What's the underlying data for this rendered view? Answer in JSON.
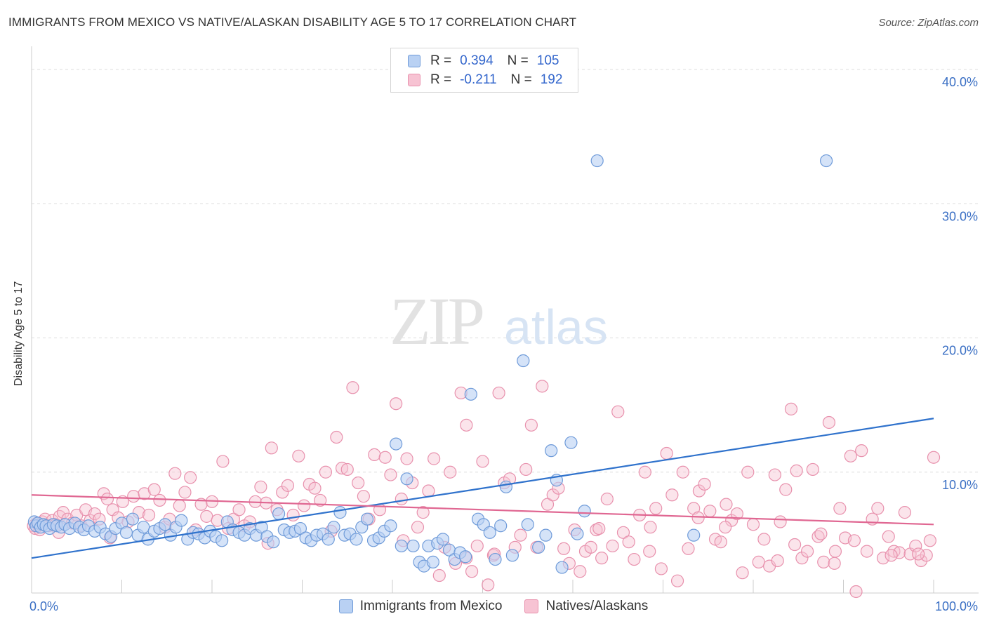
{
  "header": {
    "title": "IMMIGRANTS FROM MEXICO VS NATIVE/ALASKAN DISABILITY AGE 5 TO 17 CORRELATION CHART",
    "source": "Source: ZipAtlas.com"
  },
  "watermark": {
    "zip": "ZIP",
    "atlas": "atlas"
  },
  "legend": {
    "rows": [
      {
        "r_label": "R =",
        "r_value": "0.394",
        "n_label": "N =",
        "n_value": "105"
      },
      {
        "r_label": "R =",
        "r_value": "-0.211",
        "n_label": "N =",
        "n_value": "192"
      }
    ]
  },
  "chart_data": {
    "type": "scatter",
    "title": "IMMIGRANTS FROM MEXICO VS NATIVE/ALASKAN DISABILITY AGE 5 TO 17 CORRELATION CHART",
    "ylabel": "Disability Age 5 to 17",
    "xlabel": "",
    "xlim": [
      0,
      100
    ],
    "ylim": [
      0,
      40
    ],
    "x_tick_labels": [
      "0.0%",
      "100.0%"
    ],
    "y_ticks": [
      10,
      20,
      30,
      40
    ],
    "y_tick_labels": [
      "10.0%",
      "20.0%",
      "30.0%",
      "40.0%"
    ],
    "grid": true,
    "legend_position": "top-center",
    "colors": {
      "blue_fill": "#b9d1f3",
      "blue_stroke": "#6f9bd9",
      "blue_line": "#2f72cc",
      "pink_fill": "#f7c3d3",
      "pink_stroke": "#e891ad",
      "pink_line": "#e06792",
      "axis_text": "#3a6fc4"
    },
    "series": [
      {
        "name": "Immigrants from Mexico",
        "trend": {
          "x": [
            0,
            100
          ],
          "y": [
            3.6,
            14.0
          ]
        },
        "points": [
          [
            0.3,
            6.3
          ],
          [
            0.5,
            6.0
          ],
          [
            0.7,
            6.2
          ],
          [
            1.0,
            5.9
          ],
          [
            1.3,
            6.1
          ],
          [
            1.6,
            6.0
          ],
          [
            2.0,
            5.8
          ],
          [
            2.4,
            6.1
          ],
          [
            2.8,
            6.0
          ],
          [
            3.3,
            5.9
          ],
          [
            3.7,
            6.1
          ],
          [
            4.2,
            5.8
          ],
          [
            4.8,
            6.2
          ],
          [
            5.3,
            5.9
          ],
          [
            5.8,
            5.7
          ],
          [
            6.3,
            6.0
          ],
          [
            7.0,
            5.6
          ],
          [
            7.6,
            5.9
          ],
          [
            8.2,
            5.4
          ],
          [
            8.8,
            5.2
          ],
          [
            9.3,
            5.8
          ],
          [
            10.0,
            6.2
          ],
          [
            10.5,
            5.5
          ],
          [
            11.2,
            6.5
          ],
          [
            11.8,
            5.3
          ],
          [
            12.4,
            5.9
          ],
          [
            12.9,
            5.0
          ],
          [
            13.6,
            5.6
          ],
          [
            14.2,
            5.8
          ],
          [
            14.8,
            6.1
          ],
          [
            15.4,
            5.3
          ],
          [
            16.0,
            5.9
          ],
          [
            16.6,
            6.4
          ],
          [
            17.3,
            5.0
          ],
          [
            17.9,
            5.5
          ],
          [
            18.5,
            5.4
          ],
          [
            19.2,
            5.1
          ],
          [
            19.8,
            5.6
          ],
          [
            20.4,
            5.2
          ],
          [
            21.1,
            4.9
          ],
          [
            21.7,
            6.3
          ],
          [
            22.3,
            5.7
          ],
          [
            23.0,
            5.5
          ],
          [
            23.6,
            5.3
          ],
          [
            24.2,
            5.8
          ],
          [
            24.9,
            5.3
          ],
          [
            25.5,
            5.9
          ],
          [
            26.1,
            5.2
          ],
          [
            26.8,
            4.8
          ],
          [
            27.4,
            6.9
          ],
          [
            28.0,
            5.7
          ],
          [
            28.6,
            5.5
          ],
          [
            29.2,
            5.6
          ],
          [
            29.8,
            5.8
          ],
          [
            30.4,
            5.1
          ],
          [
            31.0,
            4.9
          ],
          [
            31.6,
            5.3
          ],
          [
            32.3,
            5.4
          ],
          [
            32.9,
            5.0
          ],
          [
            33.5,
            5.9
          ],
          [
            34.2,
            7.0
          ],
          [
            34.7,
            5.3
          ],
          [
            35.3,
            5.4
          ],
          [
            36.0,
            5.0
          ],
          [
            36.6,
            5.9
          ],
          [
            37.2,
            6.5
          ],
          [
            37.9,
            4.9
          ],
          [
            38.5,
            5.1
          ],
          [
            39.1,
            5.6
          ],
          [
            39.8,
            6.0
          ],
          [
            40.4,
            12.1
          ],
          [
            41.0,
            4.5
          ],
          [
            41.6,
            9.5
          ],
          [
            42.3,
            4.5
          ],
          [
            43.0,
            3.3
          ],
          [
            43.5,
            3.0
          ],
          [
            44.0,
            4.5
          ],
          [
            44.5,
            3.3
          ],
          [
            45.0,
            4.7
          ],
          [
            45.6,
            5.0
          ],
          [
            46.3,
            4.2
          ],
          [
            46.9,
            3.5
          ],
          [
            47.5,
            4.0
          ],
          [
            48.1,
            3.7
          ],
          [
            48.7,
            15.8
          ],
          [
            49.5,
            6.5
          ],
          [
            50.1,
            6.1
          ],
          [
            50.8,
            5.5
          ],
          [
            51.4,
            3.5
          ],
          [
            52.0,
            6.0
          ],
          [
            52.6,
            8.9
          ],
          [
            53.3,
            3.8
          ],
          [
            54.5,
            18.3
          ],
          [
            55.0,
            6.1
          ],
          [
            56.2,
            4.4
          ],
          [
            57.0,
            5.3
          ],
          [
            57.6,
            11.6
          ],
          [
            58.2,
            9.4
          ],
          [
            58.8,
            2.9
          ],
          [
            59.8,
            12.2
          ],
          [
            60.5,
            5.4
          ],
          [
            61.3,
            7.1
          ],
          [
            62.7,
            33.2
          ],
          [
            73.4,
            5.3
          ],
          [
            88.1,
            33.2
          ]
        ]
      },
      {
        "name": "Natives/Alaskans",
        "trend": {
          "x": [
            0,
            100
          ],
          "y": [
            8.3,
            6.1
          ]
        },
        "points": [
          [
            0.2,
            6.0
          ],
          [
            0.4,
            5.8
          ],
          [
            0.6,
            6.2
          ],
          [
            0.9,
            5.7
          ],
          [
            1.2,
            6.3
          ],
          [
            1.5,
            6.5
          ],
          [
            1.9,
            6.0
          ],
          [
            2.3,
            6.4
          ],
          [
            2.7,
            6.1
          ],
          [
            3.1,
            6.7
          ],
          [
            3.5,
            7.0
          ],
          [
            4.0,
            6.5
          ],
          [
            4.5,
            6.2
          ],
          [
            5.0,
            6.8
          ],
          [
            5.5,
            6.0
          ],
          [
            6.0,
            7.2
          ],
          [
            6.5,
            6.4
          ],
          [
            7.0,
            6.9
          ],
          [
            7.5,
            6.5
          ],
          [
            8.0,
            8.4
          ],
          [
            8.4,
            8.0
          ],
          [
            9.0,
            7.2
          ],
          [
            9.6,
            6.6
          ],
          [
            10.1,
            7.8
          ],
          [
            10.7,
            6.3
          ],
          [
            11.3,
            8.2
          ],
          [
            11.9,
            7.0
          ],
          [
            12.5,
            8.4
          ],
          [
            13.0,
            6.8
          ],
          [
            13.6,
            8.7
          ],
          [
            14.2,
            7.9
          ],
          [
            14.8,
            5.9
          ],
          [
            15.3,
            6.5
          ],
          [
            15.9,
            9.9
          ],
          [
            16.4,
            7.5
          ],
          [
            17.0,
            8.5
          ],
          [
            17.6,
            9.6
          ],
          [
            18.2,
            5.7
          ],
          [
            18.8,
            7.6
          ],
          [
            19.4,
            6.7
          ],
          [
            20.0,
            7.8
          ],
          [
            20.6,
            6.4
          ],
          [
            21.2,
            10.8
          ],
          [
            21.8,
            5.8
          ],
          [
            22.4,
            6.5
          ],
          [
            23.0,
            7.2
          ],
          [
            23.6,
            6.0
          ],
          [
            24.2,
            6.3
          ],
          [
            24.8,
            7.8
          ],
          [
            25.4,
            8.9
          ],
          [
            26.0,
            7.7
          ],
          [
            26.6,
            11.8
          ],
          [
            27.2,
            7.2
          ],
          [
            27.8,
            8.5
          ],
          [
            28.4,
            9.0
          ],
          [
            29.0,
            6.8
          ],
          [
            29.6,
            11.2
          ],
          [
            30.2,
            7.5
          ],
          [
            30.8,
            9.1
          ],
          [
            31.4,
            8.8
          ],
          [
            32.0,
            7.9
          ],
          [
            32.6,
            10.0
          ],
          [
            33.2,
            5.6
          ],
          [
            33.8,
            12.6
          ],
          [
            34.4,
            10.3
          ],
          [
            35.0,
            10.2
          ],
          [
            35.6,
            16.3
          ],
          [
            36.2,
            9.2
          ],
          [
            36.8,
            8.2
          ],
          [
            37.4,
            6.5
          ],
          [
            38.0,
            11.3
          ],
          [
            38.6,
            7.2
          ],
          [
            39.2,
            11.1
          ],
          [
            39.8,
            9.8
          ],
          [
            40.4,
            15.1
          ],
          [
            41.0,
            8.0
          ],
          [
            41.6,
            11.0
          ],
          [
            42.2,
            9.2
          ],
          [
            42.8,
            5.9
          ],
          [
            43.4,
            7.0
          ],
          [
            44.0,
            8.6
          ],
          [
            44.6,
            11.0
          ],
          [
            45.2,
            2.3
          ],
          [
            45.8,
            4.4
          ],
          [
            46.4,
            10.0
          ],
          [
            47.0,
            3.2
          ],
          [
            47.6,
            15.9
          ],
          [
            48.2,
            13.5
          ],
          [
            48.8,
            2.6
          ],
          [
            49.4,
            4.5
          ],
          [
            50.0,
            10.8
          ],
          [
            50.6,
            1.6
          ],
          [
            51.2,
            3.8
          ],
          [
            51.8,
            15.9
          ],
          [
            52.4,
            9.2
          ],
          [
            53.0,
            9.5
          ],
          [
            53.6,
            4.4
          ],
          [
            54.2,
            5.3
          ],
          [
            54.8,
            10.2
          ],
          [
            55.4,
            13.5
          ],
          [
            56.0,
            4.4
          ],
          [
            56.6,
            16.4
          ],
          [
            57.2,
            7.6
          ],
          [
            57.8,
            8.3
          ],
          [
            58.4,
            8.8
          ],
          [
            59.0,
            4.3
          ],
          [
            59.6,
            3.2
          ],
          [
            60.2,
            5.7
          ],
          [
            60.8,
            2.6
          ],
          [
            61.4,
            4.1
          ],
          [
            62.0,
            4.4
          ],
          [
            62.6,
            5.7
          ],
          [
            63.2,
            3.6
          ],
          [
            63.8,
            8.0
          ],
          [
            64.4,
            4.5
          ],
          [
            65.0,
            14.5
          ],
          [
            65.6,
            5.5
          ],
          [
            66.2,
            4.8
          ],
          [
            66.8,
            3.5
          ],
          [
            67.4,
            6.8
          ],
          [
            68.0,
            10.0
          ],
          [
            68.6,
            5.9
          ],
          [
            69.2,
            7.3
          ],
          [
            69.8,
            2.8
          ],
          [
            70.4,
            11.4
          ],
          [
            71.0,
            8.3
          ],
          [
            71.6,
            1.9
          ],
          [
            72.2,
            10.0
          ],
          [
            72.8,
            4.3
          ],
          [
            73.4,
            7.3
          ],
          [
            74.0,
            8.6
          ],
          [
            74.6,
            9.1
          ],
          [
            75.2,
            7.1
          ],
          [
            75.8,
            5.0
          ],
          [
            76.4,
            4.8
          ],
          [
            77.0,
            7.6
          ],
          [
            77.6,
            6.4
          ],
          [
            78.2,
            6.9
          ],
          [
            78.8,
            2.5
          ],
          [
            79.4,
            10.0
          ],
          [
            80.0,
            6.1
          ],
          [
            80.6,
            3.3
          ],
          [
            81.2,
            5.0
          ],
          [
            81.8,
            3.0
          ],
          [
            82.4,
            9.8
          ],
          [
            83.0,
            6.3
          ],
          [
            83.6,
            8.7
          ],
          [
            84.2,
            14.7
          ],
          [
            84.8,
            10.1
          ],
          [
            85.4,
            3.6
          ],
          [
            86.0,
            4.1
          ],
          [
            86.6,
            10.2
          ],
          [
            87.2,
            5.2
          ],
          [
            87.8,
            3.3
          ],
          [
            88.4,
            13.7
          ],
          [
            89.0,
            3.2
          ],
          [
            89.6,
            7.3
          ],
          [
            90.2,
            5.1
          ],
          [
            90.8,
            11.2
          ],
          [
            91.4,
            1.1
          ],
          [
            92.0,
            11.6
          ],
          [
            92.6,
            4.1
          ],
          [
            93.2,
            6.5
          ],
          [
            93.8,
            7.3
          ],
          [
            94.4,
            3.6
          ],
          [
            95.0,
            5.2
          ],
          [
            95.6,
            4.1
          ],
          [
            96.2,
            4.0
          ],
          [
            96.8,
            7.0
          ],
          [
            97.4,
            3.9
          ],
          [
            98.0,
            4.5
          ],
          [
            98.6,
            3.4
          ],
          [
            99.2,
            3.8
          ],
          [
            99.6,
            4.9
          ],
          [
            100.0,
            11.1
          ],
          [
            3.0,
            5.5
          ],
          [
            8.7,
            5.1
          ],
          [
            26.2,
            4.7
          ],
          [
            41.2,
            4.9
          ],
          [
            48.2,
            3.6
          ],
          [
            51.3,
            3.9
          ],
          [
            62.9,
            5.8
          ],
          [
            68.5,
            4.1
          ],
          [
            73.9,
            6.6
          ],
          [
            76.9,
            5.9
          ],
          [
            84.6,
            4.6
          ],
          [
            87.5,
            5.4
          ],
          [
            95.3,
            3.8
          ],
          [
            91.2,
            4.9
          ],
          [
            98.3,
            3.9
          ],
          [
            89.1,
            4.1
          ],
          [
            82.7,
            3.4
          ]
        ]
      }
    ]
  },
  "bottom_legend": {
    "items": [
      "Immigrants from Mexico",
      "Natives/Alaskans"
    ]
  }
}
